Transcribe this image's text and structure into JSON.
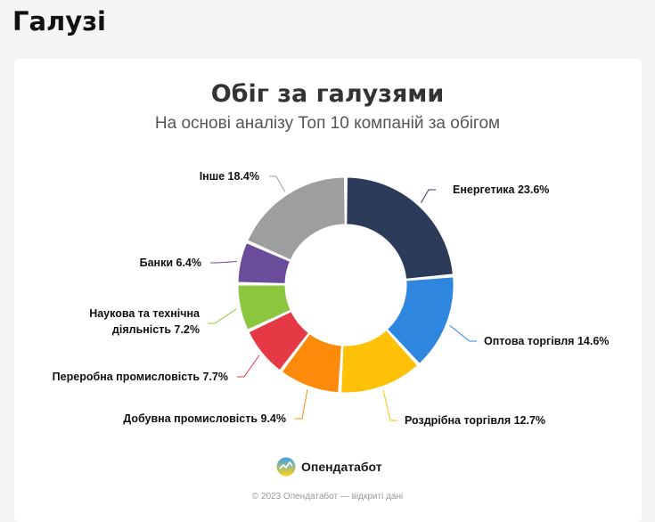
{
  "page": {
    "section_title": "Галузі"
  },
  "logo": {
    "text": "Опендатабот",
    "icon": "opendatabot-logo-icon"
  },
  "footer": {
    "text": "© 2023 Опендатабот — відкриті дані"
  },
  "chart_data": {
    "type": "pie",
    "title": "Обіг за галузями",
    "subtitle": "На основі аналізу Топ 10 компаній за обігом",
    "unit": "%",
    "donut": true,
    "legend": "none",
    "categories": [
      "Енергетика",
      "Оптова торгівля",
      "Роздрібна торгівля",
      "Добувна промисловість",
      "Переробна промисловість",
      "Наукова та технічна діяльність",
      "Банки",
      "Інше"
    ],
    "values": [
      23.6,
      14.6,
      12.7,
      9.4,
      7.7,
      7.2,
      6.4,
      18.4
    ],
    "labels": [
      [
        "Енергетика 23.6%"
      ],
      [
        "Оптова торгівля 14.6%"
      ],
      [
        "Роздрібна торгівля 12.7%"
      ],
      [
        "Добувна промисловість 9.4%"
      ],
      [
        "Переробна промисловість 7.7%"
      ],
      [
        "Наукова та технічна",
        "діяльність 7.2%"
      ],
      [
        "Банки 6.4%"
      ],
      [
        "Інше 18.4%"
      ]
    ],
    "colors": [
      "#2d3b5a",
      "#2e86de",
      "#ffc107",
      "#fd8a0a",
      "#e63946",
      "#8cc63f",
      "#6b4c9a",
      "#9e9e9e"
    ]
  }
}
